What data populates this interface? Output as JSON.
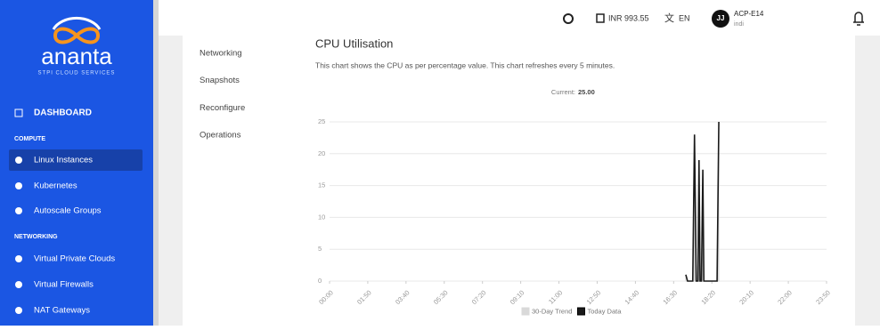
{
  "sidebar": {
    "logo": "ananta",
    "tagline": "STPI CLOUD SERVICES",
    "dashboard": "DASHBOARD",
    "sections": [
      {
        "title": "COMPUTE",
        "items": [
          "Linux Instances",
          "Kubernetes",
          "Autoscale Groups"
        ]
      },
      {
        "title": "NETWORKING",
        "items": [
          "Virtual Private Clouds",
          "Virtual Firewalls",
          "NAT Gateways"
        ]
      }
    ]
  },
  "header": {
    "balance": "INR 993.55",
    "language": "EN",
    "avatar": "JJ",
    "account": "ACP-E14",
    "user": "indi"
  },
  "tabs": [
    "Networking",
    "Snapshots",
    "Reconfigure",
    "Operations"
  ],
  "chart_data": {
    "type": "line",
    "title": "CPU Utilisation",
    "subtitle": "This chart shows the CPU as per percentage value. This chart refreshes every 5 minutes.",
    "current_label": "Current:",
    "current_value": "25.00",
    "x": [
      1025,
      1030,
      1035,
      1040,
      1045,
      1050,
      1055,
      1060,
      1063,
      1066,
      1070,
      1074,
      1077,
      1080,
      1090,
      1100,
      1110,
      1115,
      1120
    ],
    "series": [
      {
        "name": "30-Day Trend",
        "color": "#d9d9d9",
        "values": [
          1,
          0,
          0,
          0,
          0,
          22,
          0,
          0,
          18,
          0,
          0,
          17,
          0,
          0,
          0,
          0,
          0,
          0,
          24
        ]
      },
      {
        "name": "Today Data",
        "color": "#1a1a1a",
        "values": [
          1,
          0,
          0,
          0,
          0,
          23,
          0,
          0,
          19,
          0,
          0,
          17.5,
          0,
          0,
          0,
          0,
          0,
          0,
          25
        ]
      }
    ],
    "xlim": [
      0,
      1430
    ],
    "xticks": [
      {
        "value": 0,
        "label": "00:00"
      },
      {
        "value": 110,
        "label": "01:50"
      },
      {
        "value": 220,
        "label": "03:40"
      },
      {
        "value": 330,
        "label": "05:30"
      },
      {
        "value": 440,
        "label": "07:20"
      },
      {
        "value": 550,
        "label": "09:10"
      },
      {
        "value": 660,
        "label": "11:00"
      },
      {
        "value": 770,
        "label": "12:50"
      },
      {
        "value": 880,
        "label": "14:40"
      },
      {
        "value": 990,
        "label": "16:30"
      },
      {
        "value": 1100,
        "label": "18:20"
      },
      {
        "value": 1210,
        "label": "20:10"
      },
      {
        "value": 1320,
        "label": "22:00"
      },
      {
        "value": 1430,
        "label": "23:50"
      }
    ],
    "ylim": [
      0,
      25
    ],
    "yticks": [
      0,
      5,
      10,
      15,
      20,
      25
    ],
    "grid": true
  }
}
